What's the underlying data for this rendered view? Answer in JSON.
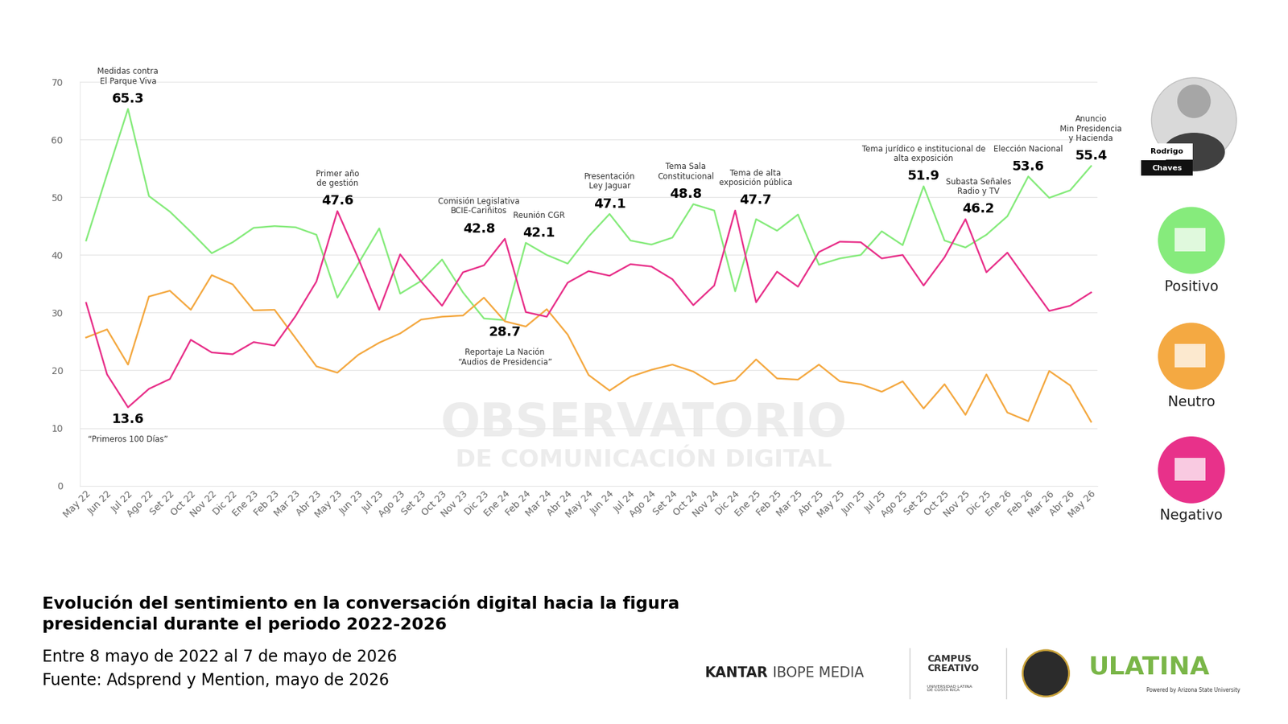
{
  "chart_data": {
    "type": "line",
    "title": "Evolución del sentimiento en la conversación digital hacia la figura presidencial durante el periodo 2022-2026",
    "subtitle": [
      "Entre 8 mayo de 2022 al 7 de mayo de 2026",
      "Fuente: Adsprend y Mention, mayo de 2026"
    ],
    "categories": [
      "May 22",
      "Jun 22",
      "Jul 22",
      "Ago 22",
      "Set 22",
      "Oct 22",
      "Nov 22",
      "Dic 22",
      "Ene 23",
      "Feb 23",
      "Mar 23",
      "Abr 23",
      "May 23",
      "Jun 23",
      "Jul 23",
      "Ago 23",
      "Set 23",
      "Oct 23",
      "Nov 23",
      "Dic 23",
      "Ene 24",
      "Feb 24",
      "Mar 24",
      "Abr 24",
      "May 24",
      "Jun 24",
      "Jul 24",
      "Ago 24",
      "Set 24",
      "Oct 24",
      "Nov 24",
      "Dic 24",
      "Ene 25",
      "Feb 25",
      "Mar 25",
      "Abr 25",
      "May 25",
      "Jun 25",
      "Jul 25",
      "Ago 25",
      "Set 25",
      "Oct 25",
      "Nov 25",
      "Dic 25",
      "Ene 26",
      "Feb 26",
      "Mar 26",
      "Abr 26",
      "May 26"
    ],
    "series": [
      {
        "name": "Positivo",
        "color": "#86eb7c",
        "values": [
          42.5,
          54.0,
          65.3,
          50.2,
          47.5,
          44.0,
          40.3,
          42.2,
          44.7,
          45.0,
          44.8,
          43.5,
          32.6,
          38.5,
          44.6,
          33.3,
          35.5,
          39.2,
          33.5,
          29.0,
          28.7,
          42.1,
          40.0,
          38.5,
          43.2,
          47.1,
          42.5,
          41.8,
          43.0,
          48.8,
          47.7,
          33.7,
          46.2,
          44.2,
          47.0,
          38.3,
          39.4,
          40.0,
          44.1,
          41.7,
          51.9,
          42.5,
          41.3,
          43.5,
          46.7,
          53.6,
          49.9,
          51.2,
          55.4
        ]
      },
      {
        "name": "Neutro",
        "color": "#f4a942",
        "values": [
          25.7,
          27.1,
          21.0,
          32.8,
          33.8,
          30.5,
          36.5,
          34.9,
          30.4,
          30.5,
          25.6,
          20.7,
          19.6,
          22.7,
          24.8,
          26.4,
          28.8,
          29.3,
          29.5,
          32.6,
          28.5,
          27.6,
          30.6,
          26.2,
          19.2,
          16.5,
          18.9,
          20.1,
          21.0,
          19.8,
          17.6,
          18.3,
          21.9,
          18.6,
          18.4,
          21.0,
          18.1,
          17.6,
          16.3,
          18.1,
          13.4,
          17.6,
          12.3,
          19.3,
          12.7,
          11.2,
          19.9,
          17.4,
          11.1
        ]
      },
      {
        "name": "Negativo",
        "color": "#e8318a",
        "values": [
          31.7,
          19.3,
          13.6,
          16.8,
          18.5,
          25.3,
          23.1,
          22.8,
          24.9,
          24.3,
          29.4,
          35.4,
          47.6,
          39.4,
          30.5,
          40.1,
          35.4,
          31.2,
          37.0,
          38.2,
          42.8,
          30.1,
          29.3,
          35.2,
          37.2,
          36.4,
          38.4,
          38.0,
          35.8,
          31.3,
          34.7,
          47.7,
          31.8,
          37.1,
          34.5,
          40.5,
          42.3,
          42.2,
          39.4,
          40.0,
          34.7,
          39.6,
          46.2,
          37.0,
          40.4,
          35.3,
          30.3,
          31.2,
          33.5
        ]
      }
    ],
    "ylim": [
      0,
      70
    ],
    "yticks": [
      0,
      10,
      20,
      30,
      40,
      50,
      60,
      70
    ],
    "grid": true,
    "annotations": [
      {
        "x": "Jul 22",
        "series": "Positivo",
        "label": [
          "Medidas contra",
          "El Parque Viva"
        ]
      },
      {
        "x": "Jul 22",
        "series": "Negativo",
        "label": [
          "“Primeros 100 Días”"
        ]
      },
      {
        "x": "May 23",
        "series": "Negativo",
        "label": [
          "Primer año",
          "de gestión"
        ]
      },
      {
        "x": "Ene 24",
        "series": "Negativo",
        "label": [
          "Comisión Legislativa",
          "BCIE-Cariñitos"
        ]
      },
      {
        "x": "Ene 24",
        "series": "Positivo",
        "label": [
          "Reportaje La Nación",
          "“Audios de Presidencia”"
        ]
      },
      {
        "x": "Feb 24",
        "series": "Positivo",
        "label": [
          "Reunión CGR"
        ]
      },
      {
        "x": "Jun 24",
        "series": "Positivo",
        "label": [
          "Presentación",
          "Ley Jaguar"
        ]
      },
      {
        "x": "Oct 24",
        "series": "Positivo",
        "label": [
          "Tema Sala",
          "Constitucional"
        ]
      },
      {
        "x": "Dic 24",
        "series": "Negativo",
        "label": [
          "Tema de alta",
          "exposición pública"
        ]
      },
      {
        "x": "Set 25",
        "series": "Positivo",
        "label": [
          "Tema jurídico e institucional de",
          "alta exposición"
        ]
      },
      {
        "x": "Nov 25",
        "series": "Negativo",
        "label": [
          "Subasta Señales",
          "Radio y TV"
        ]
      },
      {
        "x": "Feb 26",
        "series": "Positivo",
        "label": [
          "Elección Nacional"
        ]
      },
      {
        "x": "May 26",
        "series": "Positivo",
        "label": [
          "Anuncio",
          "Min Presidencia",
          "y Hacienda"
        ]
      }
    ]
  },
  "page": {
    "photo_name": [
      "Rodrigo",
      "Chaves"
    ],
    "watermark": [
      "OBSERVATORIO",
      "DE COMUNICACIÓN DIGITAL"
    ],
    "footer": {
      "kantar": [
        "KANTAR",
        "IBOPE MEDIA"
      ],
      "campus": [
        "CAMPUS",
        "CREATIVO"
      ],
      "campus_sub": [
        "UNIVERSIDAD LATINA",
        "DE COSTA RICA"
      ],
      "ulatina": "ULATINA",
      "ulatina_sub": "Powered by Arizona State University"
    }
  }
}
